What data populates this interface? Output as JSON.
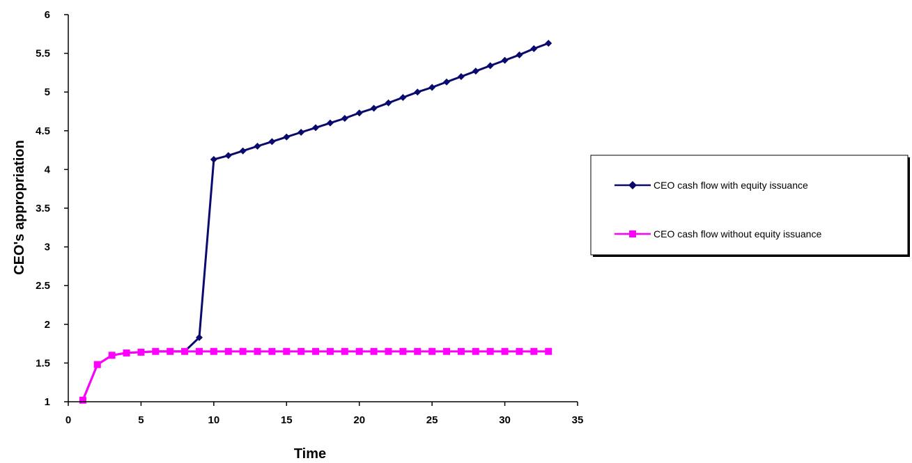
{
  "chart_data": {
    "type": "line",
    "title": "",
    "xlabel": "Time",
    "ylabel": "CEO's appropriation",
    "xlim": [
      0,
      35
    ],
    "ylim": [
      1,
      6
    ],
    "x_ticks": [
      0,
      5,
      10,
      15,
      20,
      25,
      30,
      35
    ],
    "y_ticks": [
      1,
      1.5,
      2,
      2.5,
      3,
      3.5,
      4,
      4.5,
      5,
      5.5,
      6
    ],
    "y_tick_labels": [
      "1",
      "1.5",
      "2",
      "2.5",
      "3",
      "3.5",
      "4",
      "4.5",
      "5",
      "5.5",
      "6"
    ],
    "grid": false,
    "legend_position": "right",
    "series": [
      {
        "name": "CEO cash flow with equity issuance",
        "color": "#0a0a6e",
        "marker": "diamond",
        "x": [
          1,
          2,
          3,
          4,
          5,
          6,
          7,
          8,
          9,
          10,
          11,
          12,
          13,
          14,
          15,
          16,
          17,
          18,
          19,
          20,
          21,
          22,
          23,
          24,
          25,
          26,
          27,
          28,
          29,
          30,
          31,
          32,
          33
        ],
        "y": [
          1.02,
          1.48,
          1.6,
          1.63,
          1.64,
          1.65,
          1.65,
          1.65,
          1.83,
          4.13,
          4.18,
          4.24,
          4.3,
          4.36,
          4.42,
          4.48,
          4.54,
          4.6,
          4.66,
          4.73,
          4.79,
          4.86,
          4.93,
          5.0,
          5.06,
          5.13,
          5.2,
          5.27,
          5.34,
          5.41,
          5.48,
          5.56,
          5.63
        ]
      },
      {
        "name": "CEO cash flow without equity issuance",
        "color": "#ff00ff",
        "marker": "square",
        "x": [
          1,
          2,
          3,
          4,
          5,
          6,
          7,
          8,
          9,
          10,
          11,
          12,
          13,
          14,
          15,
          16,
          17,
          18,
          19,
          20,
          21,
          22,
          23,
          24,
          25,
          26,
          27,
          28,
          29,
          30,
          31,
          32,
          33
        ],
        "y": [
          1.02,
          1.48,
          1.6,
          1.63,
          1.64,
          1.65,
          1.65,
          1.65,
          1.65,
          1.65,
          1.65,
          1.65,
          1.65,
          1.65,
          1.65,
          1.65,
          1.65,
          1.65,
          1.65,
          1.65,
          1.65,
          1.65,
          1.65,
          1.65,
          1.65,
          1.65,
          1.65,
          1.65,
          1.65,
          1.65,
          1.65,
          1.65,
          1.65
        ]
      }
    ]
  }
}
